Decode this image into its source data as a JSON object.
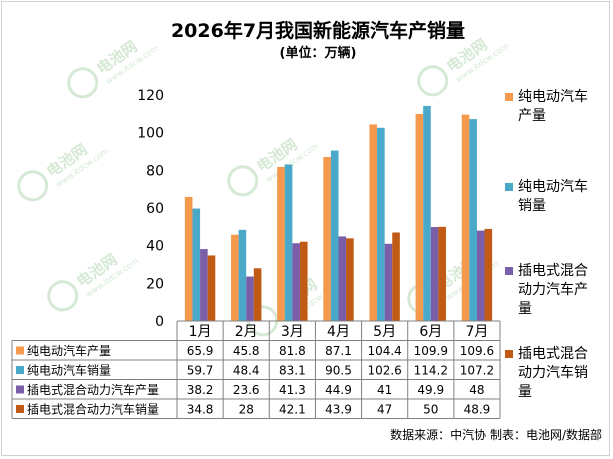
{
  "title": "2026年7月我国新能源汽车产销量",
  "subtitle": "(单位：万辆)",
  "source": "数据来源：中汽协  制表：电池网/数据部",
  "watermark": {
    "main": "电池网",
    "sub": "www.itdcw.com"
  },
  "chart_data": {
    "type": "bar",
    "categories": [
      "1月",
      "2月",
      "3月",
      "4月",
      "5月",
      "6月",
      "7月"
    ],
    "ylim": [
      0,
      120
    ],
    "yticks": [
      0,
      20,
      40,
      60,
      80,
      100,
      120
    ],
    "grid": false,
    "legend_position": "right",
    "data_table": true,
    "series": [
      {
        "name": "纯电动汽车产量",
        "legend": [
          "纯电动汽车",
          "产量"
        ],
        "color": "#f59a4c",
        "values": [
          65.9,
          45.8,
          81.8,
          87.1,
          104.4,
          109.9,
          109.6
        ],
        "labels": [
          "65.9",
          "45.8",
          "81.8",
          "87.1",
          "104.4",
          "109.9",
          "109.6"
        ]
      },
      {
        "name": "纯电动汽车销量",
        "legend": [
          "纯电动汽车",
          "销量"
        ],
        "color": "#4aa8c8",
        "values": [
          59.7,
          48.4,
          83.1,
          90.5,
          102.6,
          114.2,
          107.2
        ],
        "labels": [
          "59.7",
          "48.4",
          "83.1",
          "90.5",
          "102.6",
          "114.2",
          "107.2"
        ]
      },
      {
        "name": "插电式混合动力汽车产量",
        "legend": [
          "插电式混合",
          "动力汽车产",
          "量"
        ],
        "color": "#7b5ea8",
        "values": [
          38.2,
          23.6,
          41.3,
          44.9,
          41,
          49.9,
          48
        ],
        "labels": [
          "38.2",
          "23.6",
          "41.3",
          "44.9",
          "41",
          "49.9",
          "48"
        ]
      },
      {
        "name": "插电式混合动力汽车销量",
        "legend": [
          "插电式混合",
          "动力汽车销",
          "量"
        ],
        "color": "#c05a14",
        "values": [
          34.8,
          28,
          42.1,
          43.9,
          47,
          50,
          48.9
        ],
        "labels": [
          "34.8",
          "28",
          "42.1",
          "43.9",
          "47",
          "50",
          "48.9"
        ]
      }
    ]
  }
}
